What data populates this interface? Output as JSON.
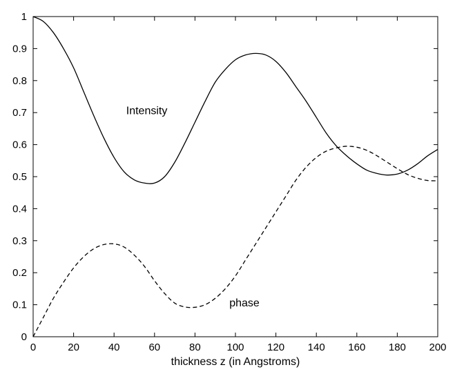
{
  "chart_data": {
    "type": "line",
    "title": "",
    "xlabel": "thickness z (in Angstroms)",
    "ylabel": "",
    "xlim": [
      0,
      200
    ],
    "ylim": [
      0,
      1
    ],
    "xticks": [
      0,
      20,
      40,
      60,
      80,
      100,
      120,
      140,
      160,
      180,
      200
    ],
    "yticks": [
      0,
      0.1,
      0.2,
      0.3,
      0.4,
      0.5,
      0.6,
      0.7,
      0.8,
      0.9,
      1
    ],
    "grid": false,
    "legend": "none",
    "series": [
      {
        "name": "Intensity",
        "line_style": "solid",
        "color": "#000000",
        "x": [
          0,
          5,
          10,
          15,
          20,
          25,
          30,
          35,
          40,
          45,
          50,
          55,
          60,
          65,
          70,
          75,
          80,
          85,
          90,
          95,
          100,
          105,
          110,
          115,
          120,
          125,
          130,
          135,
          140,
          145,
          150,
          155,
          160,
          165,
          170,
          175,
          180,
          185,
          190,
          195,
          200
        ],
        "y": [
          1.0,
          0.985,
          0.95,
          0.9,
          0.84,
          0.765,
          0.69,
          0.62,
          0.56,
          0.515,
          0.49,
          0.48,
          0.48,
          0.5,
          0.545,
          0.605,
          0.67,
          0.735,
          0.795,
          0.835,
          0.865,
          0.88,
          0.885,
          0.88,
          0.86,
          0.825,
          0.78,
          0.735,
          0.685,
          0.635,
          0.595,
          0.565,
          0.54,
          0.52,
          0.51,
          0.505,
          0.508,
          0.52,
          0.54,
          0.565,
          0.585
        ]
      },
      {
        "name": "phase",
        "line_style": "dashed",
        "color": "#000000",
        "x": [
          0,
          5,
          10,
          15,
          20,
          25,
          30,
          35,
          40,
          45,
          50,
          55,
          60,
          65,
          70,
          75,
          80,
          85,
          90,
          95,
          100,
          105,
          110,
          115,
          120,
          125,
          130,
          135,
          140,
          145,
          150,
          155,
          160,
          165,
          170,
          175,
          180,
          185,
          190,
          195,
          200
        ],
        "y": [
          0.0,
          0.06,
          0.12,
          0.17,
          0.215,
          0.25,
          0.275,
          0.288,
          0.29,
          0.28,
          0.255,
          0.22,
          0.175,
          0.135,
          0.105,
          0.093,
          0.092,
          0.1,
          0.12,
          0.15,
          0.19,
          0.24,
          0.29,
          0.34,
          0.39,
          0.44,
          0.49,
          0.53,
          0.56,
          0.58,
          0.59,
          0.595,
          0.592,
          0.582,
          0.565,
          0.545,
          0.525,
          0.507,
          0.495,
          0.488,
          0.487
        ]
      }
    ],
    "annotations": [
      {
        "text": "Intensity",
        "x": 46,
        "y": 0.695
      },
      {
        "text": "phase",
        "x": 97,
        "y": 0.095
      }
    ]
  }
}
